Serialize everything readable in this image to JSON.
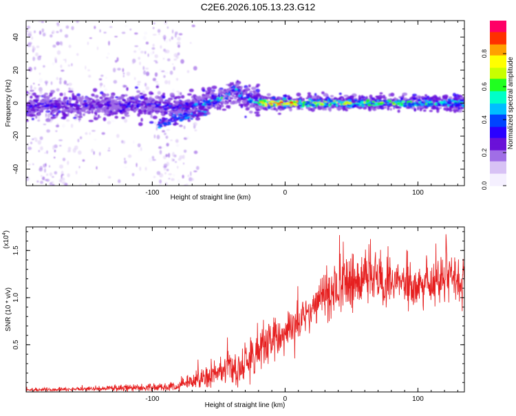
{
  "page_title": "C2E6.2026.105.13.23.G12",
  "chart_data": [
    {
      "type": "heatmap",
      "xlabel": "Height of straight line (km)",
      "ylabel": "Frequency (Hz)",
      "xlim": [
        -195,
        135
      ],
      "ylim": [
        -50,
        50
      ],
      "xticks": [
        -100,
        0,
        100
      ],
      "xtick_labels": [
        "-100",
        "0",
        "100"
      ],
      "yticks": [
        -40,
        -20,
        0,
        20,
        40
      ],
      "ytick_labels": [
        "-40",
        "-20",
        "0",
        "20",
        "40"
      ],
      "colorbar": {
        "label": "Normalized spectral amplitude",
        "range": [
          0,
          1
        ],
        "ticks": [
          0.0,
          0.2,
          0.4,
          0.6,
          0.8
        ],
        "tick_labels": [
          "0.0",
          "0.2",
          "0.4",
          "0.6",
          "0.8"
        ],
        "colormap": [
          "#f5f0ff",
          "#d8c2f5",
          "#a06ee6",
          "#6a11d8",
          "#2a00ff",
          "#0044ff",
          "#00bfff",
          "#00ffc8",
          "#20ff20",
          "#c8ff00",
          "#ffff00",
          "#ffa000",
          "#ff3000",
          "#ff0066"
        ]
      },
      "signal_track": {
        "x": [
          -195,
          -100,
          -80,
          -60,
          -45,
          -38,
          -30,
          -22,
          -15,
          0,
          10,
          20,
          50,
          100,
          135
        ],
        "freq": [
          -2,
          -1,
          -3,
          0,
          4,
          8,
          3,
          1,
          0,
          0,
          0,
          0,
          0,
          0,
          0
        ],
        "peak_amplitude": [
          0.35,
          0.4,
          0.45,
          0.55,
          0.6,
          0.6,
          0.5,
          0.8,
          0.95,
          1.0,
          0.9,
          0.8,
          0.75,
          0.7,
          0.6
        ]
      }
    },
    {
      "type": "line",
      "xlabel": "Height of straight line (km)",
      "ylabel": "SNR (10 * v/v)",
      "y_multiplier_label": "(x10",
      "y_multiplier_exp": "4",
      "y_multiplier_close": ")",
      "xlim": [
        -195,
        135
      ],
      "ylim": [
        0,
        1.75
      ],
      "xticks": [
        -100,
        0,
        100
      ],
      "xtick_labels": [
        "-100",
        "0",
        "100"
      ],
      "yticks": [
        0.5,
        1.0,
        1.5
      ],
      "ytick_labels": [
        "0.5",
        "1.0",
        "1.5"
      ],
      "series": [
        {
          "name": "SNR",
          "color": "#e62020",
          "envelope_x": [
            -195,
            -150,
            -100,
            -80,
            -70,
            -60,
            -50,
            -40,
            -30,
            -20,
            -10,
            0,
            10,
            20,
            30,
            40,
            50,
            60,
            70,
            80,
            90,
            100,
            110,
            120,
            135
          ],
          "envelope_mean": [
            0.02,
            0.03,
            0.05,
            0.06,
            0.1,
            0.15,
            0.2,
            0.25,
            0.3,
            0.45,
            0.55,
            0.6,
            0.72,
            0.9,
            1.05,
            1.1,
            1.15,
            1.2,
            1.15,
            1.2,
            1.15,
            1.1,
            1.15,
            1.2,
            1.2
          ],
          "envelope_noise": [
            0.02,
            0.02,
            0.04,
            0.05,
            0.08,
            0.12,
            0.15,
            0.2,
            0.22,
            0.25,
            0.2,
            0.18,
            0.2,
            0.25,
            0.3,
            0.3,
            0.3,
            0.28,
            0.3,
            0.28,
            0.28,
            0.25,
            0.25,
            0.25,
            0.2
          ]
        }
      ]
    }
  ]
}
